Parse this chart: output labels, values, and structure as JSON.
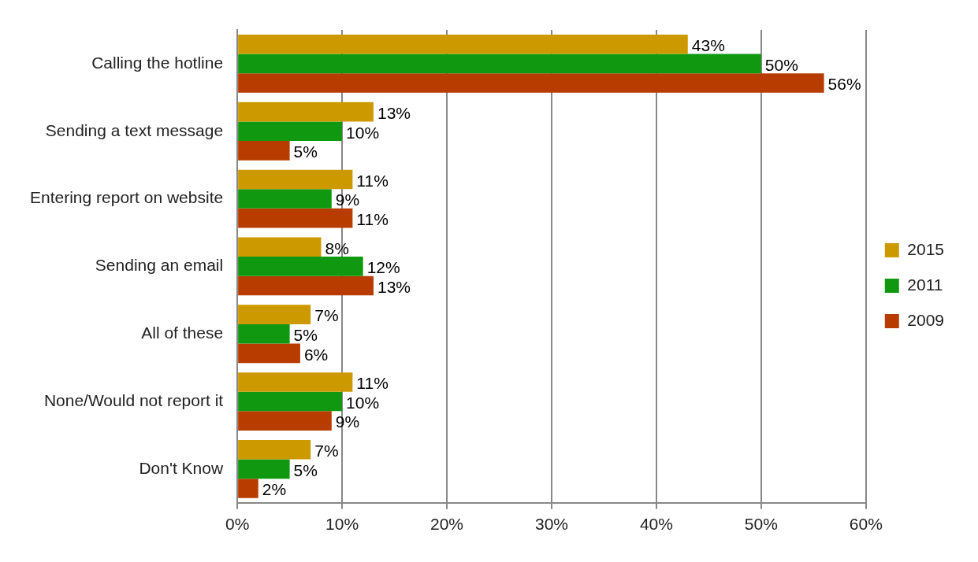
{
  "chart_data": {
    "type": "bar",
    "orientation": "horizontal",
    "categories": [
      "Calling the hotline",
      "Sending a text message",
      "Entering report on website",
      "Sending an email",
      "All of these",
      "None/Would not report it",
      "Don't Know"
    ],
    "series": [
      {
        "name": "2015",
        "color": "#cc9900",
        "values": [
          43,
          13,
          11,
          8,
          7,
          11,
          7
        ],
        "value_labels": [
          "43%",
          "13%",
          "11%",
          "8%",
          "7%",
          "11%",
          "7%"
        ]
      },
      {
        "name": "2011",
        "color": "#109910",
        "values": [
          50,
          10,
          9,
          12,
          5,
          10,
          5
        ],
        "value_labels": [
          "50%",
          "10%",
          "9%",
          "12%",
          "5%",
          "10%",
          "5%"
        ]
      },
      {
        "name": "2009",
        "color": "#b83c00",
        "values": [
          56,
          5,
          11,
          13,
          6,
          9,
          2
        ],
        "value_labels": [
          "56%",
          "5%",
          "11%",
          "13%",
          "6%",
          "9%",
          "2%"
        ]
      }
    ],
    "xlim": [
      0,
      60
    ],
    "xticks": [
      {
        "value": 0,
        "label": "0%"
      },
      {
        "value": 10,
        "label": "10%"
      },
      {
        "value": 20,
        "label": "20%"
      },
      {
        "value": 30,
        "label": "30%"
      },
      {
        "value": 40,
        "label": "40%"
      },
      {
        "value": 50,
        "label": "50%"
      },
      {
        "value": 60,
        "label": "60%"
      }
    ],
    "grid": "x",
    "legend": "right"
  }
}
